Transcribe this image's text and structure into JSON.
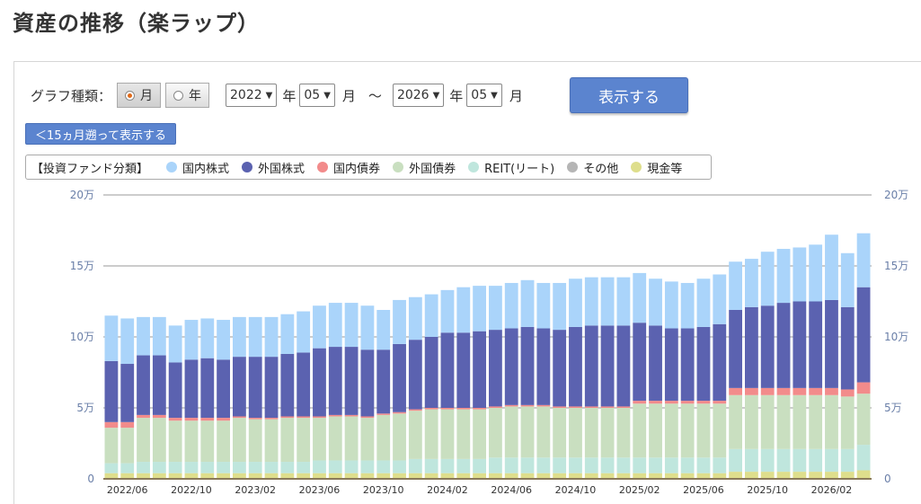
{
  "page": {
    "title": "資産の推移（楽ラップ）"
  },
  "controls": {
    "graph_type_label": "グラフ種類：",
    "radio_month": "月",
    "radio_year": "年",
    "selected": "month",
    "from_year": "2022",
    "from_month": "05",
    "to_year": "2026",
    "to_month": "05",
    "year_unit": "年",
    "month_unit": "月",
    "tilde": "～",
    "show_button": "表示する",
    "back_button": "＜15ヵ月遡って表示する"
  },
  "legend": {
    "title": "【投資ファンド分類】"
  },
  "chart_data": {
    "type": "bar",
    "stacked": true,
    "ylim": [
      0,
      200000
    ],
    "y_ticks": [
      0,
      50000,
      100000,
      150000,
      200000
    ],
    "y_tick_labels": [
      "0",
      "5万",
      "10万",
      "15万",
      "20万"
    ],
    "grid": true,
    "x_tick_labels": [
      {
        "index": 1,
        "label": "2022/06"
      },
      {
        "index": 5,
        "label": "2022/10"
      },
      {
        "index": 9,
        "label": "2023/02"
      },
      {
        "index": 13,
        "label": "2023/06"
      },
      {
        "index": 17,
        "label": "2023/10"
      },
      {
        "index": 21,
        "label": "2024/02"
      },
      {
        "index": 25,
        "label": "2024/06"
      },
      {
        "index": 29,
        "label": "2024/10"
      },
      {
        "index": 33,
        "label": "2025/02"
      },
      {
        "index": 37,
        "label": "2025/06"
      },
      {
        "index": 41,
        "label": "2025/10"
      },
      {
        "index": 45,
        "label": "2026/02"
      }
    ],
    "categories": [
      "2022/05",
      "2022/06",
      "2022/07",
      "2022/08",
      "2022/09",
      "2022/10",
      "2022/11",
      "2022/12",
      "2023/01",
      "2023/02",
      "2023/03",
      "2023/04",
      "2023/05",
      "2023/06",
      "2023/07",
      "2023/08",
      "2023/09",
      "2023/10",
      "2023/11",
      "2023/12",
      "2024/01",
      "2024/02",
      "2024/03",
      "2024/04",
      "2024/05",
      "2024/06",
      "2024/07",
      "2024/08",
      "2024/09",
      "2024/10",
      "2024/11",
      "2024/12",
      "2025/01",
      "2025/02",
      "2025/03",
      "2025/04",
      "2025/05",
      "2025/06",
      "2025/07",
      "2025/08",
      "2025/09",
      "2025/10",
      "2025/11",
      "2025/12",
      "2026/01",
      "2026/02",
      "2026/03",
      "2026/04"
    ],
    "series": [
      {
        "name": "現金等",
        "color": "#dede8c",
        "values": [
          4000,
          4000,
          4000,
          4000,
          4000,
          4000,
          4000,
          4000,
          4000,
          4000,
          4000,
          4000,
          4000,
          4000,
          4000,
          4000,
          4000,
          4000,
          4000,
          4000,
          4000,
          4000,
          4000,
          4000,
          4000,
          4000,
          4000,
          4000,
          4000,
          4000,
          4000,
          4000,
          4000,
          4000,
          4000,
          4000,
          4000,
          4000,
          4000,
          5000,
          5000,
          5000,
          5000,
          5000,
          5000,
          5000,
          5000,
          6000
        ]
      },
      {
        "name": "その他",
        "color": "#b5b5b5",
        "values": [
          0,
          0,
          0,
          0,
          0,
          0,
          0,
          0,
          0,
          0,
          0,
          0,
          0,
          0,
          0,
          0,
          0,
          0,
          0,
          0,
          0,
          0,
          0,
          0,
          0,
          0,
          0,
          0,
          0,
          0,
          0,
          0,
          0,
          0,
          0,
          0,
          0,
          0,
          0,
          0,
          0,
          0,
          0,
          0,
          0,
          0,
          0,
          0
        ]
      },
      {
        "name": "REIT(リート)",
        "color": "#bfe6dd",
        "values": [
          7000,
          7000,
          8000,
          8000,
          8000,
          8000,
          8000,
          8000,
          8000,
          8000,
          8000,
          8000,
          8000,
          9000,
          9000,
          9000,
          9000,
          9000,
          9000,
          10000,
          10000,
          10000,
          10000,
          10000,
          11000,
          11000,
          11000,
          11000,
          11000,
          11000,
          11000,
          11000,
          11000,
          11000,
          11000,
          11000,
          11000,
          11000,
          11000,
          16000,
          16000,
          16000,
          16000,
          16000,
          16000,
          16000,
          16000,
          18000
        ]
      },
      {
        "name": "外国債券",
        "color": "#c9dfc0",
        "values": [
          25000,
          25000,
          31000,
          31000,
          29000,
          29000,
          29000,
          29000,
          31000,
          30000,
          30000,
          31000,
          31000,
          30000,
          31000,
          31000,
          30000,
          32000,
          33000,
          34000,
          35000,
          35000,
          35000,
          35000,
          35000,
          36000,
          36000,
          36000,
          35000,
          35000,
          35000,
          35000,
          35000,
          38000,
          38000,
          38000,
          38000,
          38000,
          38000,
          38000,
          38000,
          38000,
          38000,
          38000,
          38000,
          38000,
          37000,
          36000
        ]
      },
      {
        "name": "国内債券",
        "color": "#f28b8b",
        "values": [
          4000,
          4000,
          2000,
          2000,
          2000,
          2000,
          2000,
          2000,
          1000,
          1000,
          1000,
          1000,
          1000,
          1000,
          1000,
          1000,
          1000,
          1000,
          1000,
          1000,
          1000,
          1000,
          1000,
          1000,
          1000,
          1000,
          1000,
          1000,
          1000,
          1000,
          1000,
          1000,
          1000,
          2000,
          2000,
          2000,
          2000,
          2000,
          2000,
          5000,
          5000,
          5000,
          5000,
          5000,
          5000,
          5000,
          5000,
          8000
        ]
      },
      {
        "name": "外国株式",
        "color": "#5b62b0",
        "values": [
          43000,
          41000,
          42000,
          42000,
          39000,
          41000,
          42000,
          41000,
          42000,
          43000,
          43000,
          44000,
          45000,
          48000,
          48000,
          48000,
          47000,
          45000,
          48000,
          49000,
          50000,
          53000,
          53000,
          54000,
          54000,
          54000,
          55000,
          54000,
          54000,
          56000,
          57000,
          57000,
          57000,
          55000,
          53000,
          51000,
          51000,
          52000,
          54000,
          55000,
          57000,
          58000,
          60000,
          61000,
          61000,
          62000,
          58000,
          67000
        ]
      },
      {
        "name": "国内株式",
        "color": "#aad4fa",
        "values": [
          32000,
          32000,
          27000,
          27000,
          26000,
          28000,
          28000,
          28000,
          28000,
          28000,
          28000,
          28000,
          29000,
          30000,
          31000,
          31000,
          31000,
          28000,
          31000,
          30000,
          30000,
          30000,
          32000,
          32000,
          31000,
          32000,
          33000,
          32000,
          33000,
          34000,
          34000,
          34000,
          34000,
          35000,
          33000,
          33000,
          32000,
          34000,
          35000,
          34000,
          34000,
          38000,
          38000,
          38000,
          40000,
          46000,
          38000,
          38000
        ]
      }
    ]
  }
}
